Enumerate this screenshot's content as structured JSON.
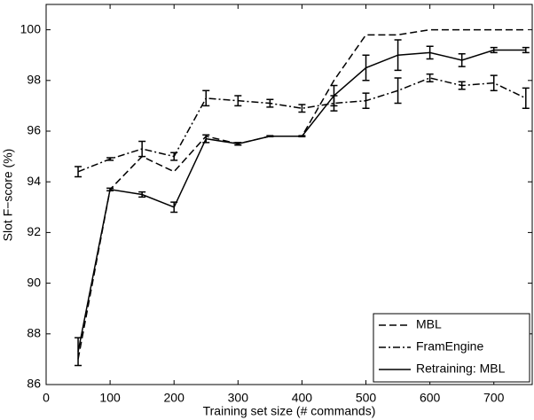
{
  "chart_data": {
    "type": "line",
    "x_label": "Training set size (# commands)",
    "y_label": "Slot F−score (%)",
    "x": [
      50,
      100,
      150,
      200,
      250,
      300,
      350,
      400,
      450,
      500,
      550,
      600,
      650,
      700,
      750
    ],
    "series": [
      {
        "name": "MBL",
        "color": "#000000",
        "style": "dashed",
        "values": [
          87.0,
          93.7,
          95.0,
          94.4,
          95.8,
          95.5,
          95.8,
          95.8,
          98.0,
          99.8,
          99.8,
          100,
          100,
          100,
          100
        ]
      },
      {
        "name": "FramEngine",
        "color": "#000000",
        "style": "dashdot",
        "values": [
          94.4,
          94.9,
          95.3,
          95.0,
          97.3,
          97.2,
          97.1,
          96.9,
          97.1,
          97.2,
          97.6,
          98.1,
          97.8,
          97.9,
          97.3
        ],
        "errors": [
          0.2,
          0.05,
          0.3,
          0.15,
          0.3,
          0.2,
          0.15,
          0.15,
          0.3,
          0.3,
          0.5,
          0.15,
          0.15,
          0.3,
          0.4
        ]
      },
      {
        "name": "Retraining: MBL",
        "color": "#000000",
        "style": "solid",
        "values": [
          87.3,
          93.7,
          93.5,
          93.0,
          95.7,
          95.5,
          95.8,
          95.8,
          97.4,
          98.5,
          99.0,
          99.1,
          98.8,
          99.2,
          99.2
        ],
        "errors": [
          0.55,
          0.05,
          0.1,
          0.2,
          0.15,
          0.05,
          0.02,
          0.02,
          0.4,
          0.5,
          0.6,
          0.25,
          0.25,
          0.1,
          0.1
        ]
      }
    ],
    "xlim": [
      0,
      760
    ],
    "ylim": [
      86,
      101
    ],
    "xticks": [
      0,
      100,
      200,
      300,
      400,
      500,
      600,
      700
    ],
    "yticks": [
      86,
      88,
      90,
      92,
      94,
      96,
      98,
      100
    ],
    "grid": false,
    "legend": "lower right"
  }
}
